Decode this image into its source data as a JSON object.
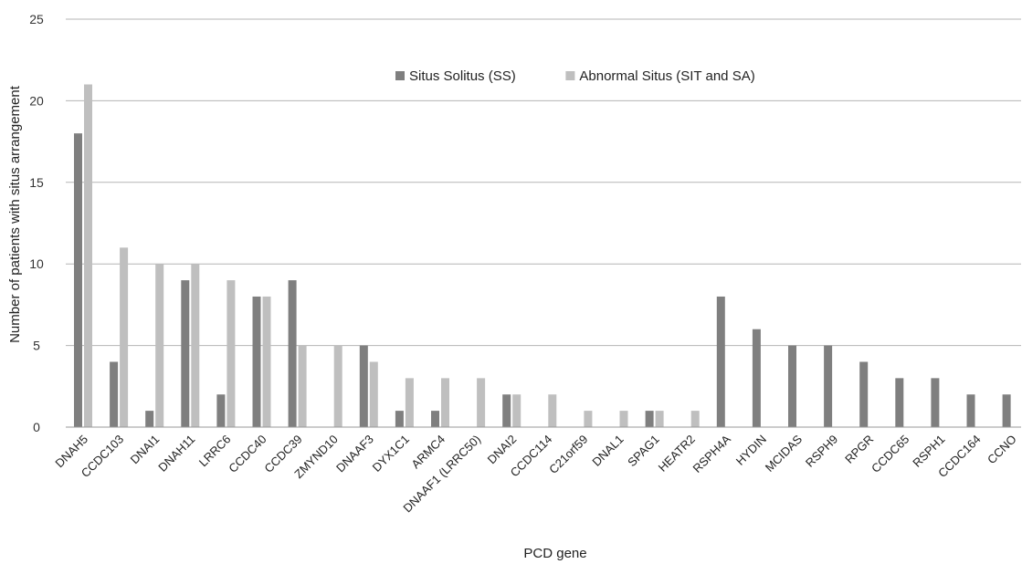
{
  "chart_data": {
    "type": "bar",
    "title": "",
    "xlabel": "PCD gene",
    "ylabel": "Number of patients with situs arrangement",
    "ylim": [
      0,
      25
    ],
    "yticks": [
      0,
      5,
      10,
      15,
      20,
      25
    ],
    "grid": true,
    "legend_position": "top-center",
    "categories": [
      "DNAH5",
      "CCDC103",
      "DNAI1",
      "DNAH11",
      "LRRC6",
      "CCDC40",
      "CCDC39",
      "ZMYND10",
      "DNAAF3",
      "DYX1C1",
      "ARMC4",
      "DNAAF1 (LRRC50)",
      "DNAI2",
      "CCDC114",
      "C21orf59",
      "DNAL1",
      "SPAG1",
      "HEATR2",
      "RSPH4A",
      "HYDIN",
      "MCIDAS",
      "RSPH9",
      "RPGR",
      "CCDC65",
      "RSPH1",
      "CCDC164",
      "CCNO"
    ],
    "series": [
      {
        "name": "Situs Solitus (SS)",
        "color": "#7f7f7f",
        "values": [
          18,
          4,
          1,
          9,
          2,
          8,
          9,
          0,
          5,
          1,
          1,
          0,
          2,
          0,
          0,
          0,
          1,
          0,
          8,
          6,
          5,
          5,
          4,
          3,
          3,
          2,
          2
        ]
      },
      {
        "name": "Abnormal Situs (SIT and SA)",
        "color": "#bfbfbf",
        "values": [
          21,
          11,
          10,
          10,
          9,
          8,
          5,
          5,
          4,
          3,
          3,
          3,
          2,
          2,
          1,
          1,
          1,
          1,
          0,
          0,
          0,
          0,
          0,
          0,
          0,
          0,
          0
        ]
      }
    ]
  }
}
